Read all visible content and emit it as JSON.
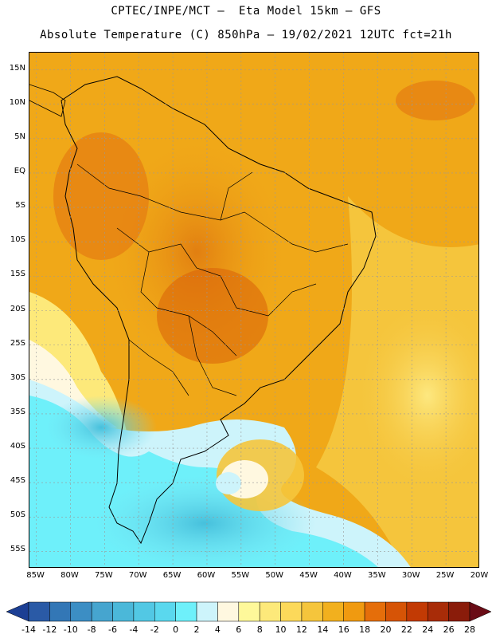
{
  "header": {
    "line1": "CPTEC/INPE/MCT –  Eta Model 15km – GFS",
    "line2": "Absolute Temperature (C) 850hPa – 19/02/2021 12UTC fct=21h"
  },
  "map": {
    "lat_labels": [
      "15N",
      "10N",
      "5N",
      "EQ",
      "5S",
      "10S",
      "15S",
      "20S",
      "25S",
      "30S",
      "35S",
      "40S",
      "45S",
      "50S",
      "55S"
    ],
    "lon_labels": [
      "85W",
      "80W",
      "75W",
      "70W",
      "65W",
      "60W",
      "55W",
      "50W",
      "45W",
      "40W",
      "35W",
      "30W",
      "25W",
      "20W"
    ],
    "lat_values": [
      15,
      10,
      5,
      0,
      -5,
      -10,
      -15,
      -20,
      -25,
      -30,
      -35,
      -40,
      -45,
      -50,
      -55
    ],
    "lon_values": [
      -85,
      -80,
      -75,
      -70,
      -65,
      -60,
      -55,
      -50,
      -45,
      -40,
      -35,
      -30,
      -25,
      -20
    ],
    "lon_range": [
      -86,
      -20
    ],
    "lat_range": [
      17.5,
      -57.5
    ]
  },
  "colorbar": {
    "labels": [
      "-14",
      "-12",
      "-10",
      "-8",
      "-6",
      "-4",
      "-2",
      "0",
      "2",
      "4",
      "6",
      "8",
      "10",
      "12",
      "14",
      "16",
      "18",
      "20",
      "22",
      "24",
      "26",
      "28"
    ],
    "colors": [
      "#1c3f94",
      "#2a5aa6",
      "#3377b6",
      "#3c8ec4",
      "#46a5cf",
      "#4bb8d9",
      "#52c8e4",
      "#5ad8ee",
      "#6ef0fa",
      "#cdf4fb",
      "#fff8e0",
      "#fef89a",
      "#fde97a",
      "#fcd95a",
      "#f5c53c",
      "#f2b01e",
      "#f09a10",
      "#e56e0a",
      "#d65406",
      "#c23a04",
      "#a82c08",
      "#8a1c0a",
      "#6a0c16"
    ]
  }
}
